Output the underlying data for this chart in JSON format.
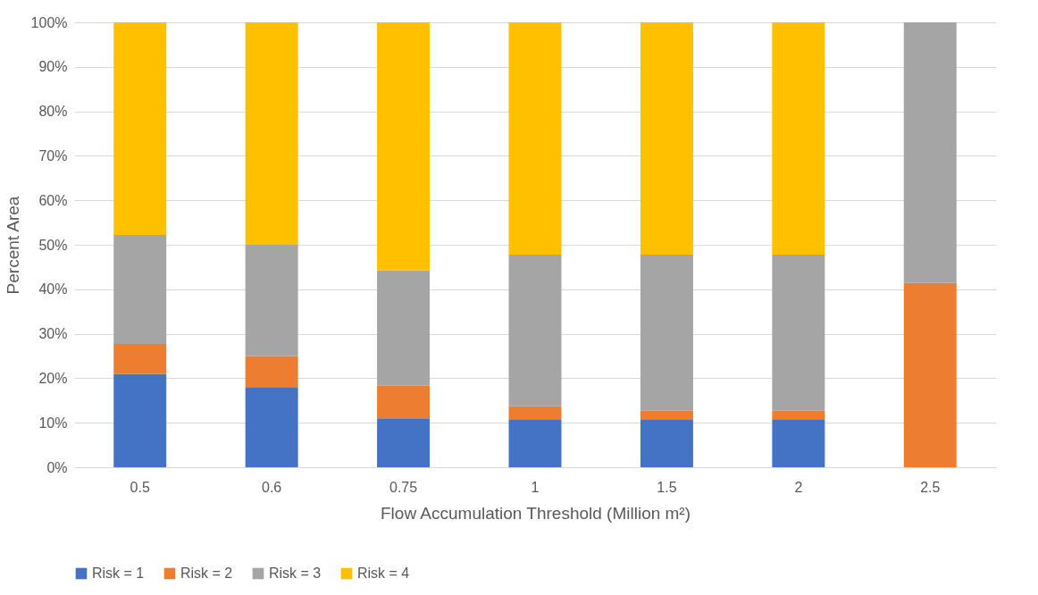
{
  "chart_data": {
    "type": "bar",
    "stacked": true,
    "xlabel": "Flow Accumulation Threshold (Million m²)",
    "ylabel": "Percent Area",
    "categories": [
      "0.5",
      "0.6",
      "0.75",
      "1",
      "1.5",
      "2",
      "2.5"
    ],
    "series": [
      {
        "name": "Risk = 1",
        "color": "#4472c4",
        "values": [
          21,
          18,
          11,
          10.8,
          10.8,
          10.8,
          0
        ]
      },
      {
        "name": "Risk = 2",
        "color": "#ed7d31",
        "values": [
          6.7,
          7,
          7.3,
          2.9,
          1.9,
          1.9,
          41.4
        ]
      },
      {
        "name": "Risk = 3",
        "color": "#a5a5a5",
        "values": [
          24.5,
          25,
          26,
          34.1,
          35.1,
          35.1,
          58.6
        ]
      },
      {
        "name": "Risk = 4",
        "color": "#ffc000",
        "values": [
          47.8,
          50,
          55.7,
          52.2,
          52.2,
          52.2,
          0
        ]
      }
    ],
    "ylim": [
      0,
      100
    ],
    "yticks": [
      {
        "value": 0,
        "label": "0%"
      },
      {
        "value": 10,
        "label": "10%"
      },
      {
        "value": 20,
        "label": "20%"
      },
      {
        "value": 30,
        "label": "30%"
      },
      {
        "value": 40,
        "label": "40%"
      },
      {
        "value": 50,
        "label": "50%"
      },
      {
        "value": 60,
        "label": "60%"
      },
      {
        "value": 70,
        "label": "70%"
      },
      {
        "value": 80,
        "label": "80%"
      },
      {
        "value": 90,
        "label": "90%"
      },
      {
        "value": 100,
        "label": "100%"
      }
    ],
    "grid": "y",
    "legend": "bottom"
  }
}
